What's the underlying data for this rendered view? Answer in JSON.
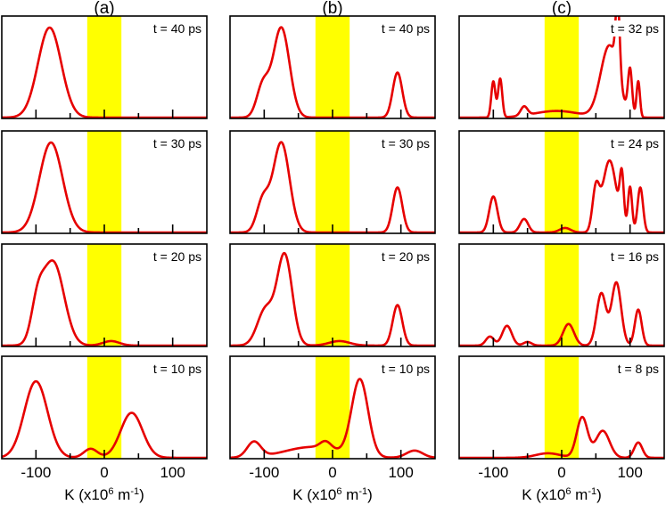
{
  "figure": {
    "columns": [
      {
        "id": "a",
        "title": "(a)"
      },
      {
        "id": "b",
        "title": "(b)"
      },
      {
        "id": "c",
        "title": "(c)"
      }
    ],
    "xlabel": {
      "prefix": "K (x10",
      "exp1": "6",
      "mid": " m",
      "exp2": "-1",
      "suffix": ")"
    },
    "tick_labels": [
      "-100",
      "0",
      "100"
    ]
  },
  "chart_data": {
    "type": "line",
    "xlim": [
      -150,
      150
    ],
    "xticks": [
      -100,
      0,
      100
    ],
    "minor_xticks": [
      -100,
      -50,
      0,
      50,
      100
    ],
    "highlight_band": {
      "from": -25,
      "to": 25,
      "color": "#ffff00"
    },
    "line_color": "#e60000",
    "panels": [
      {
        "col": "a",
        "time": "t = 40 ps",
        "ylim": [
          0,
          1
        ],
        "components": [
          [
            -80,
            1.0,
            17
          ]
        ]
      },
      {
        "col": "a",
        "time": "t = 30 ps",
        "ylim": [
          0,
          1
        ],
        "components": [
          [
            -78,
            1.0,
            17
          ]
        ]
      },
      {
        "col": "a",
        "time": "t = 20 ps",
        "ylim": [
          0,
          1
        ],
        "components": [
          [
            -75,
            0.93,
            16
          ],
          [
            -98,
            0.35,
            9
          ],
          [
            10,
            0.05,
            12
          ]
        ]
      },
      {
        "col": "a",
        "time": "t = 10 ps",
        "ylim": [
          0,
          1
        ],
        "components": [
          [
            -100,
            0.85,
            17
          ],
          [
            40,
            0.5,
            16
          ],
          [
            -20,
            0.1,
            10
          ]
        ]
      },
      {
        "col": "b",
        "time": "t = 40 ps",
        "ylim": [
          0,
          1
        ],
        "components": [
          [
            -75,
            1.0,
            12
          ],
          [
            -102,
            0.35,
            9
          ],
          [
            95,
            0.5,
            7
          ]
        ]
      },
      {
        "col": "b",
        "time": "t = 30 ps",
        "ylim": [
          0,
          1
        ],
        "components": [
          [
            -75,
            1.0,
            12
          ],
          [
            -102,
            0.35,
            9
          ],
          [
            95,
            0.5,
            7
          ]
        ]
      },
      {
        "col": "b",
        "time": "t = 20 ps",
        "ylim": [
          0,
          1
        ],
        "components": [
          [
            -70,
            1.0,
            11
          ],
          [
            -98,
            0.4,
            12
          ],
          [
            95,
            0.45,
            7
          ],
          [
            10,
            0.05,
            15
          ]
        ]
      },
      {
        "col": "b",
        "time": "t = 10 ps",
        "ylim": [
          0,
          1
        ],
        "components": [
          [
            40,
            0.85,
            12
          ],
          [
            -115,
            0.17,
            10
          ],
          [
            -30,
            0.12,
            40
          ],
          [
            -10,
            0.08,
            8
          ],
          [
            120,
            0.08,
            12
          ]
        ]
      },
      {
        "col": "c",
        "time": "t = 32 ps",
        "ylim": [
          0,
          1
        ],
        "components": [
          [
            -100,
            0.4,
            3
          ],
          [
            -90,
            0.43,
            3
          ],
          [
            -55,
            0.1,
            5
          ],
          [
            -20,
            0.04,
            30
          ],
          [
            5,
            0.04,
            30
          ],
          [
            70,
            0.8,
            13
          ],
          [
            82,
            0.8,
            3
          ],
          [
            100,
            0.5,
            3
          ],
          [
            112,
            0.4,
            2.5
          ]
        ]
      },
      {
        "col": "c",
        "time": "t = 24 ps",
        "ylim": [
          0,
          1
        ],
        "components": [
          [
            -100,
            0.4,
            6
          ],
          [
            -55,
            0.15,
            6
          ],
          [
            5,
            0.05,
            8
          ],
          [
            50,
            0.45,
            5
          ],
          [
            70,
            0.8,
            10
          ],
          [
            88,
            0.55,
            3
          ],
          [
            100,
            0.5,
            3
          ],
          [
            115,
            0.5,
            4
          ]
        ]
      },
      {
        "col": "c",
        "time": "t = 16 ps",
        "ylim": [
          0,
          1
        ],
        "components": [
          [
            -105,
            0.1,
            6
          ],
          [
            -80,
            0.22,
            7
          ],
          [
            -50,
            0.04,
            6
          ],
          [
            10,
            0.24,
            8
          ],
          [
            58,
            0.58,
            7
          ],
          [
            80,
            0.7,
            7
          ],
          [
            112,
            0.4,
            5
          ]
        ]
      },
      {
        "col": "c",
        "time": "t =  8 ps",
        "ylim": [
          0,
          1
        ],
        "components": [
          [
            -20,
            0.05,
            18
          ],
          [
            30,
            0.45,
            8
          ],
          [
            60,
            0.3,
            10
          ],
          [
            112,
            0.17,
            6
          ]
        ]
      }
    ]
  }
}
